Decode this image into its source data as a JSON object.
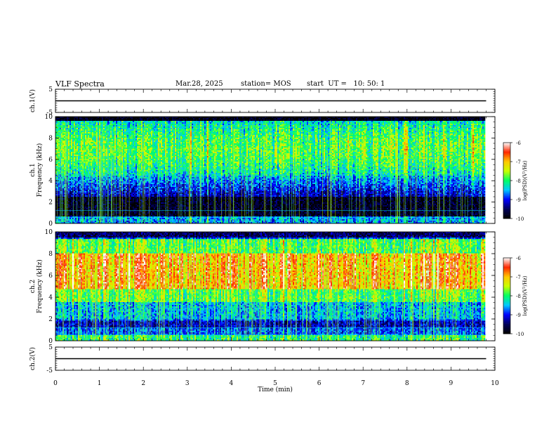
{
  "header": {
    "title": "VLF Spectra",
    "date": "Mar.28, 2025",
    "station": "station= MOS",
    "start": "start  UT =   10: 50: 1"
  },
  "colors": {
    "ink": "#000000",
    "bg_low": "#000033",
    "scale": [
      "#000000",
      "#00005a",
      "#0000ff",
      "#00c8ff",
      "#00ff64",
      "#c8ff00",
      "#ffc800",
      "#ff2800",
      "#ffffff"
    ]
  },
  "chart_data": [
    {
      "type": "line",
      "ylabel": "ch.1(V)",
      "ylim": [
        -5,
        5
      ],
      "yticks": [
        "5",
        "-5"
      ],
      "series": [
        {
          "x": [
            0,
            9.8
          ],
          "y": [
            0,
            0
          ]
        }
      ]
    },
    {
      "type": "heatmap",
      "ylabel": "ch.1\nFrequency (kHz)",
      "ylim": [
        0,
        10
      ],
      "yticks": [
        "0",
        "2",
        "4",
        "6",
        "8",
        "10"
      ],
      "xlim": [
        0,
        10
      ],
      "data_extent_min": 9.8,
      "profile": "ch1",
      "colorbar": {
        "label": "log(PSD)(V²/Hz)",
        "range": [
          -10,
          -6
        ],
        "ticks": [
          "-6",
          "-7",
          "-8",
          "-9",
          "-10"
        ]
      }
    },
    {
      "type": "heatmap",
      "ylabel": "ch.2\nFrequency (kHz)",
      "ylim": [
        0,
        10
      ],
      "yticks": [
        "0",
        "2",
        "4",
        "6",
        "8",
        "10"
      ],
      "xlim": [
        0,
        10
      ],
      "data_extent_min": 9.8,
      "profile": "ch2",
      "colorbar": {
        "label": "log(PSD)(V²/Hz)",
        "range": [
          -10,
          -6
        ],
        "ticks": [
          "-6",
          "-7",
          "-8",
          "-9",
          "-10"
        ]
      }
    },
    {
      "type": "line",
      "ylabel": "ch.2(V)",
      "ylim": [
        -5,
        5
      ],
      "yticks": [
        "5",
        "-5"
      ],
      "series": [
        {
          "x": [
            0,
            9.8
          ],
          "y": [
            0,
            0
          ]
        }
      ]
    }
  ],
  "xaxis": {
    "label": "Time  (min)",
    "ticks": [
      "0",
      "1",
      "2",
      "3",
      "4",
      "5",
      "6",
      "7",
      "8",
      "9",
      "10"
    ],
    "range": [
      0,
      10
    ]
  }
}
